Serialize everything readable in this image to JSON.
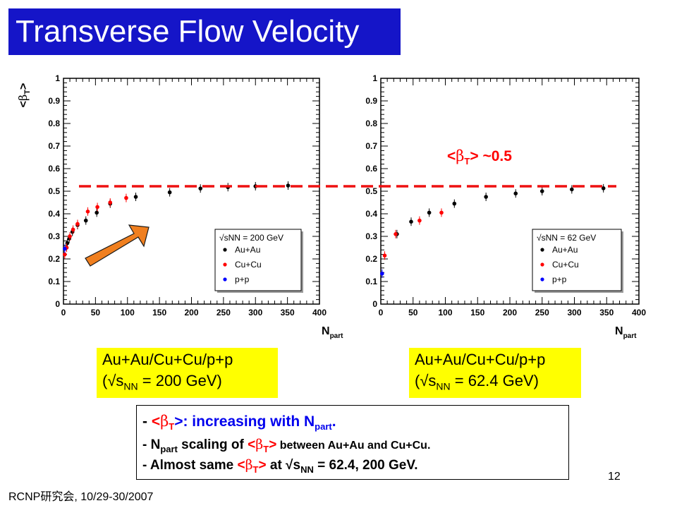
{
  "title": "Transverse Flow Velocity",
  "chart_data": [
    {
      "type": "scatter",
      "ylabel": "<βT>",
      "xlabel": "Npart",
      "xlim": [
        0,
        400
      ],
      "ylim": [
        0,
        1
      ],
      "xticks": [
        "0",
        "50",
        "100",
        "150",
        "200",
        "250",
        "300",
        "350",
        "400"
      ],
      "yticks": [
        "0",
        "0.1",
        "0.2",
        "0.3",
        "0.4",
        "0.5",
        "0.6",
        "0.7",
        "0.8",
        "0.9",
        "1"
      ],
      "legend_title": "√sNN = 200 GeV",
      "legend_position": "bottom-right",
      "series": [
        {
          "name": "Au+Au",
          "color": "#000000",
          "x": [
            6,
            9,
            14,
            22,
            35,
            52,
            73,
            113,
            166,
            214,
            257,
            300,
            351
          ],
          "y": [
            0.27,
            0.29,
            0.32,
            0.35,
            0.37,
            0.405,
            0.445,
            0.475,
            0.495,
            0.512,
            0.518,
            0.522,
            0.525
          ]
        },
        {
          "name": "Cu+Cu",
          "color": "#ff0000",
          "x": [
            2,
            5,
            10,
            15,
            22,
            38,
            53,
            73,
            98
          ],
          "y": [
            0.22,
            0.25,
            0.3,
            0.33,
            0.355,
            0.41,
            0.43,
            0.45,
            0.47
          ]
        },
        {
          "name": "p+p",
          "color": "#0000ff",
          "x": [
            2
          ],
          "y": [
            0.245
          ]
        }
      ]
    },
    {
      "type": "scatter",
      "ylabel": "",
      "xlabel": "Npart",
      "xlim": [
        0,
        400
      ],
      "ylim": [
        0,
        1
      ],
      "xticks": [
        "0",
        "50",
        "100",
        "150",
        "200",
        "250",
        "300",
        "350",
        "400"
      ],
      "yticks": [
        "0",
        "0.1",
        "0.2",
        "0.3",
        "0.4",
        "0.5",
        "0.6",
        "0.7",
        "0.8",
        "0.9",
        "1"
      ],
      "legend_title": "√sNN = 62 GeV",
      "legend_position": "bottom-right",
      "series": [
        {
          "name": "Au+Au",
          "color": "#000000",
          "x": [
            25,
            47,
            75,
            114,
            163,
            209,
            250,
            296,
            345
          ],
          "y": [
            0.31,
            0.365,
            0.405,
            0.445,
            0.475,
            0.49,
            0.5,
            0.508,
            0.513
          ]
        },
        {
          "name": "Cu+Cu",
          "color": "#ff0000",
          "x": [
            6,
            23,
            60,
            94
          ],
          "y": [
            0.215,
            0.31,
            0.37,
            0.405
          ]
        },
        {
          "name": "p+p",
          "color": "#0000ff",
          "x": [
            2
          ],
          "y": [
            0.135
          ]
        }
      ]
    }
  ],
  "annotation": {
    "text_prefix": "<β",
    "text_sub": "T",
    "text_suffix": "> ~0.5",
    "line_value": 0.52
  },
  "captions": [
    {
      "line1": "Au+Au/Cu+Cu/p+p",
      "line2_prefix": "(√s",
      "line2_sub": "NN",
      "line2_suffix": " = 200 GeV)"
    },
    {
      "line1": "Au+Au/Cu+Cu/p+p",
      "line2_prefix": "(√s",
      "line2_sub": "NN",
      "line2_suffix": " = 62.4 GeV)"
    }
  ],
  "notes": {
    "line1": {
      "a": "- ",
      "b": "<",
      "beta": "β",
      "sub1": "T",
      "c": ">: increasing with N",
      "sub2": "part",
      "d": "."
    },
    "line2": {
      "a": "- N",
      "sub1": "part",
      "b": " scaling of ",
      "c": "<",
      "beta": "β",
      "sub2": "T",
      "d": ">",
      "e": " between Au+Au and Cu+Cu."
    },
    "line3": {
      "a": "- Almost same ",
      "b": "<",
      "beta": "β",
      "sub1": "T",
      "c": ">",
      "d": " at √s",
      "sub2": "NN",
      "e": " = 62.4, 200 GeV."
    }
  },
  "page_number": "12",
  "footer": "RCNP研究会, 10/29-30/2007"
}
